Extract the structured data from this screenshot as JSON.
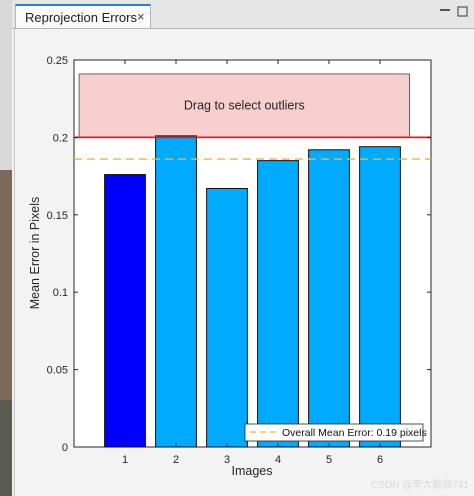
{
  "tab": {
    "title": "Reprojection Errors",
    "close_label": "×"
  },
  "chart_data": {
    "type": "bar",
    "categories": [
      "1",
      "2",
      "3",
      "4",
      "5",
      "6"
    ],
    "values": [
      0.176,
      0.201,
      0.167,
      0.185,
      0.192,
      0.194
    ],
    "bar_colors": [
      "#0000ff",
      "#00aaff",
      "#00aaff",
      "#00aaff",
      "#00aaff",
      "#00aaff"
    ],
    "title": "",
    "xlabel": "Images",
    "ylabel": "Mean Error in Pixels",
    "ylim": [
      0,
      0.25
    ],
    "yticks": [
      0,
      0.05,
      0.1,
      0.15,
      0.2,
      0.25
    ],
    "ytick_labels": [
      "0",
      "0.05",
      "0.1",
      "0.15",
      "0.2",
      "0.25"
    ],
    "grid": false,
    "threshold": {
      "value": 0.2,
      "color": "#d92020"
    },
    "mean_line": {
      "value": 0.186,
      "color": "#f0b43c",
      "label": "Overall Mean Error: 0.19 pixels"
    },
    "outlier_region": {
      "label": "Drag to select outliers",
      "from": 0.2,
      "to": 0.241,
      "x_from": 0.1,
      "x_to": 6.58,
      "color": "#f8cfcf"
    },
    "legend_position": "bottom-right"
  },
  "watermark": "CSDN @李大脑袋741"
}
